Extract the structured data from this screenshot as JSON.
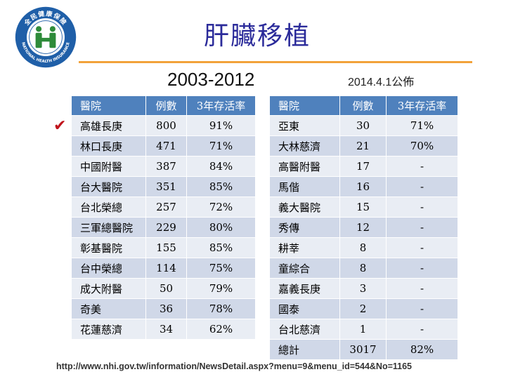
{
  "logo": {
    "arc_text": "全民健康保險",
    "bottom_text": "NATIONAL HEALTH INSURANCE"
  },
  "title": "肝臟移植",
  "years": "2003-2012",
  "published": "2014.4.1公佈",
  "left_table": {
    "headers": [
      "醫院",
      "例數",
      "3年存活率"
    ],
    "rows": [
      [
        "高雄長庚",
        "800",
        "91%"
      ],
      [
        "林口長庚",
        "471",
        "71%"
      ],
      [
        "中國附醫",
        "387",
        "84%"
      ],
      [
        "台大醫院",
        "351",
        "85%"
      ],
      [
        "台北榮總",
        "257",
        "72%"
      ],
      [
        "三軍總醫院",
        "229",
        "80%"
      ],
      [
        "彰基醫院",
        "155",
        "85%"
      ],
      [
        "台中榮總",
        "114",
        "75%"
      ],
      [
        "成大附醫",
        "50",
        "79%"
      ],
      [
        "奇美",
        "36",
        "78%"
      ],
      [
        "花蓮慈濟",
        "34",
        "62%"
      ]
    ]
  },
  "right_table": {
    "headers": [
      "醫院",
      "例數",
      "3年存活率"
    ],
    "rows": [
      [
        "亞東",
        "30",
        "71%"
      ],
      [
        "大林慈濟",
        "21",
        "70%"
      ],
      [
        "高醫附醫",
        "17",
        "-"
      ],
      [
        "馬偕",
        "16",
        "-"
      ],
      [
        "義大醫院",
        "15",
        "-"
      ],
      [
        "秀傳",
        "12",
        "-"
      ],
      [
        "耕莘",
        "8",
        "-"
      ],
      [
        "童綜合",
        "8",
        "-"
      ],
      [
        "嘉義長庚",
        "3",
        "-"
      ],
      [
        "國泰",
        "2",
        "-"
      ],
      [
        "台北慈濟",
        "1",
        "-"
      ],
      [
        "總計",
        "3017",
        "82%"
      ]
    ]
  },
  "source_url": "http://www.nhi.gov.tw/information/NewsDetail.aspx?menu=9&menu_id=544&No=1165",
  "colors": {
    "header": "#4f81bd",
    "title": "#2b2b9a",
    "accent": "#f2a23a",
    "check": "#c0141c"
  }
}
